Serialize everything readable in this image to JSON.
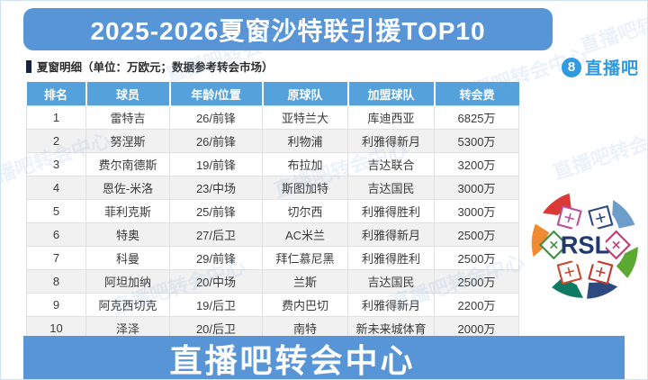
{
  "page": {
    "title": "2025-2026夏窗沙特联引援TOP10",
    "subtitle": "夏窗明细（单位：万欧元；数据参考转会市场）",
    "footer": "直播吧转会中心",
    "watermark": "直播吧转会中心"
  },
  "logo": {
    "badge": "8",
    "text": "直播吧"
  },
  "rsl_logo": {
    "text": "RSL"
  },
  "colors": {
    "banner": "#5795D6",
    "table_header": "#55A1DC",
    "logo_blue": "#2E9BE0",
    "row_alt": "#F1F1F1"
  },
  "chart_data": {
    "type": "table",
    "title": "2025-2026夏窗沙特联引援TOP10",
    "columns": [
      "排名",
      "球员",
      "年龄/位置",
      "原球队",
      "加盟球队",
      "转会费"
    ],
    "rows": [
      [
        "1",
        "雷特吉",
        "26/前锋",
        "亚特兰大",
        "库迪西亚",
        "6825万"
      ],
      [
        "2",
        "努涅斯",
        "26/前锋",
        "利物浦",
        "利雅得新月",
        "5300万"
      ],
      [
        "3",
        "费尔南德斯",
        "19/前锋",
        "布拉加",
        "吉达联合",
        "3200万"
      ],
      [
        "4",
        "恩佐-米洛",
        "23/中场",
        "斯图加特",
        "吉达国民",
        "3000万"
      ],
      [
        "5",
        "菲利克斯",
        "25/前锋",
        "切尔西",
        "利雅得胜利",
        "3000万"
      ],
      [
        "6",
        "特奥",
        "27/后卫",
        "AC米兰",
        "利雅得新月",
        "2500万"
      ],
      [
        "7",
        "科曼",
        "29/前锋",
        "拜仁慕尼黑",
        "利雅得胜利",
        "2500万"
      ],
      [
        "8",
        "阿坦加纳",
        "20/中场",
        "兰斯",
        "吉达国民",
        "2500万"
      ],
      [
        "9",
        "阿克西切克",
        "19/后卫",
        "费内巴切",
        "利雅得新月",
        "2200万"
      ],
      [
        "10",
        "泽泽",
        "20/后卫",
        "南特",
        "新未来城体育",
        "2000万"
      ]
    ],
    "unit": "万欧元"
  }
}
